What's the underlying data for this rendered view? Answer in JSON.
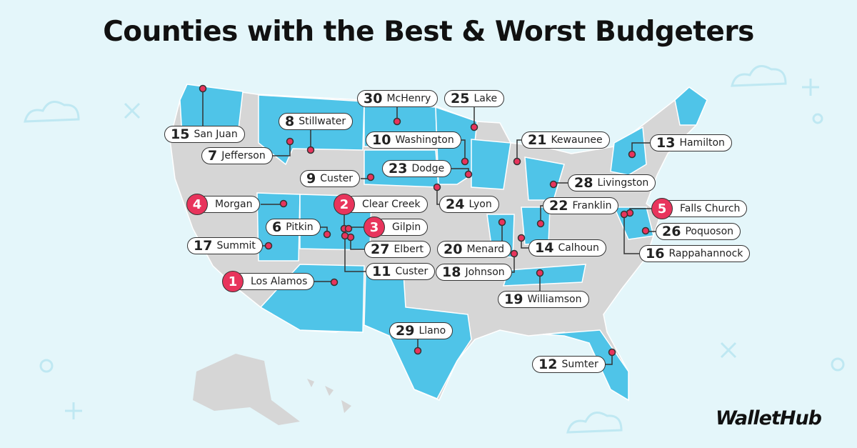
{
  "title": "Counties with the Best & Worst Budgeters",
  "counties": [
    {
      "rank": 15,
      "name": "San Juan"
    },
    {
      "rank": 7,
      "name": "Jefferson"
    },
    {
      "rank": 8,
      "name": "Stillwater"
    },
    {
      "rank": 30,
      "name": "McHenry"
    },
    {
      "rank": 25,
      "name": "Lake"
    },
    {
      "rank": 10,
      "name": "Washington"
    },
    {
      "rank": 21,
      "name": "Kewaunee"
    },
    {
      "rank": 13,
      "name": "Hamilton"
    },
    {
      "rank": 9,
      "name": "Custer"
    },
    {
      "rank": 23,
      "name": "Dodge"
    },
    {
      "rank": 28,
      "name": "Livingston"
    },
    {
      "rank": 4,
      "name": "Morgan"
    },
    {
      "rank": 2,
      "name": "Clear Creek"
    },
    {
      "rank": 24,
      "name": "Lyon"
    },
    {
      "rank": 22,
      "name": "Franklin"
    },
    {
      "rank": 5,
      "name": "Falls Church"
    },
    {
      "rank": 6,
      "name": "Pitkin"
    },
    {
      "rank": 3,
      "name": "Gilpin"
    },
    {
      "rank": 26,
      "name": "Poquoson"
    },
    {
      "rank": 17,
      "name": "Summit"
    },
    {
      "rank": 27,
      "name": "Elbert"
    },
    {
      "rank": 20,
      "name": "Menard"
    },
    {
      "rank": 14,
      "name": "Calhoun"
    },
    {
      "rank": 16,
      "name": "Rappahannock"
    },
    {
      "rank": 18,
      "name": "Johnson"
    },
    {
      "rank": 11,
      "name": "Custer"
    },
    {
      "rank": 1,
      "name": "Los Alamos"
    },
    {
      "rank": 19,
      "name": "Williamson"
    },
    {
      "rank": 29,
      "name": "Llano"
    },
    {
      "rank": 12,
      "name": "Sumter"
    }
  ],
  "brand": "WalletHub"
}
